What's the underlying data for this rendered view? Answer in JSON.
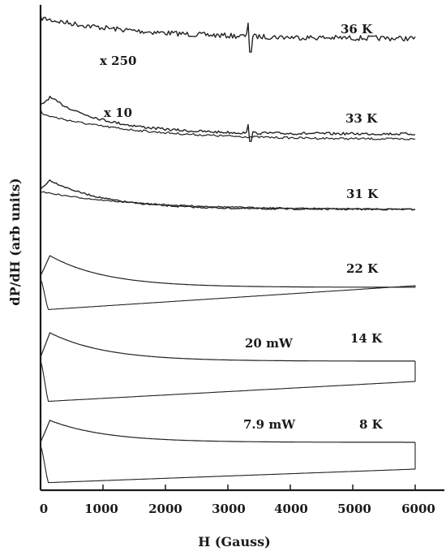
{
  "chart_data": {
    "type": "line",
    "xlabel": "H (Gauss)",
    "ylabel": "dP/dH (arb units)",
    "xlim": [
      0,
      6000
    ],
    "xticks": [
      "0",
      "1000",
      "2000",
      "3000",
      "4000",
      "5000",
      "6000"
    ],
    "y_ticks_shown": false,
    "grid": false,
    "colors": {
      "line": "#222222",
      "axis": "#1a1a1a"
    },
    "series": [
      {
        "name": "36 K",
        "noisy": true,
        "signal_at": 3350,
        "baseline": 0.0,
        "peak": 0.0,
        "bottom_end": 0.0
      },
      {
        "name": "33 K",
        "noisy": true,
        "signal_at": 3350,
        "baseline": 0.0,
        "peak": 1.0,
        "bottom_end": 0.0
      },
      {
        "name": "31 K",
        "noisy": true,
        "baseline": 0.0,
        "peak": 1.0,
        "bottom_end": 0.0
      },
      {
        "name": "22 K",
        "noisy": false,
        "baseline": 0.0,
        "peak": 1.0,
        "bottom_end": 0.0
      },
      {
        "name": "14 K",
        "noisy": false,
        "baseline": 0.0,
        "peak": 1.0,
        "bottom_end": 0.0
      },
      {
        "name": "8 K",
        "noisy": false,
        "baseline": 0.0,
        "peak": 1.0,
        "bottom_end": 0.0
      }
    ],
    "annotations": [
      "x 250",
      "x 10",
      "20 mW",
      "7.9 mW"
    ]
  }
}
